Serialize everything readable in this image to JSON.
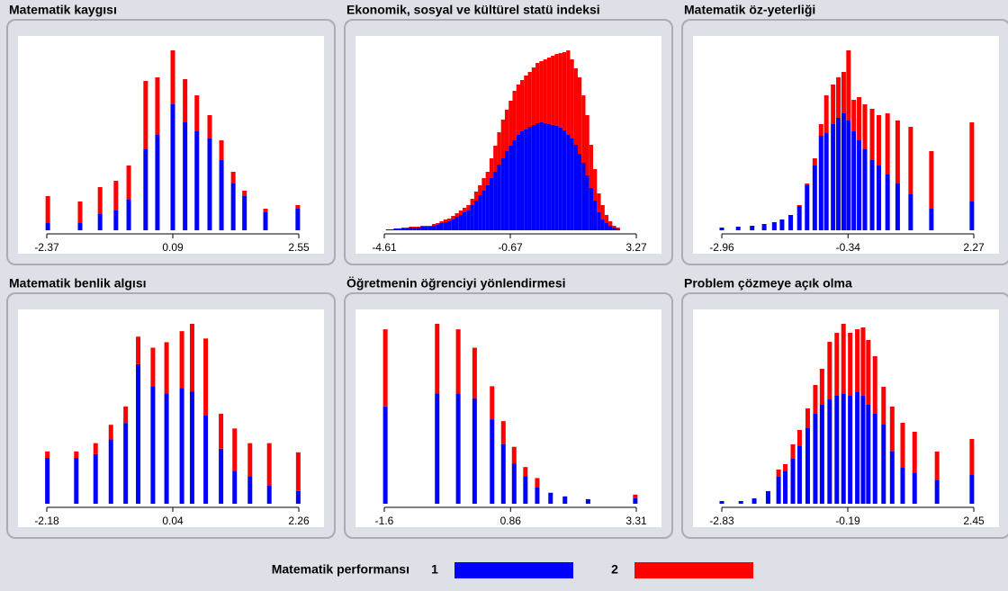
{
  "legend_title": "Matematik performansı",
  "chart_data": [
    {
      "type": "bar",
      "stacked": true,
      "title": "Matematik kaygısı",
      "x": [
        -2.35,
        -1.72,
        -1.33,
        -1.02,
        -0.77,
        -0.44,
        -0.21,
        0.09,
        0.33,
        0.56,
        0.81,
        1.04,
        1.27,
        1.49,
        1.9,
        2.53
      ],
      "series": [
        {
          "name": "1",
          "color": "#0000ff",
          "values": [
            8,
            8,
            18,
            22,
            34,
            90,
            106,
            140,
            120,
            110,
            102,
            78,
            52,
            38,
            20,
            24
          ]
        },
        {
          "name": "2",
          "color": "#ff0000",
          "values": [
            30,
            24,
            30,
            33,
            38,
            76,
            64,
            60,
            48,
            40,
            26,
            22,
            13,
            6,
            4,
            4
          ]
        }
      ],
      "xlim": [
        -2.37,
        2.55
      ],
      "xticks": [
        -2.37,
        0.09,
        2.55
      ]
    },
    {
      "type": "bar",
      "stacked": true,
      "title": "Ekonomik, sosyal ve kültürel statü indeksi",
      "x": [
        -4.5,
        -4.38,
        -4.26,
        -4.14,
        -4.02,
        -3.9,
        -3.78,
        -3.66,
        -3.54,
        -3.42,
        -3.3,
        -3.18,
        -3.06,
        -2.94,
        -2.82,
        -2.7,
        -2.58,
        -2.46,
        -2.34,
        -2.22,
        -2.1,
        -1.98,
        -1.86,
        -1.74,
        -1.62,
        -1.5,
        -1.38,
        -1.26,
        -1.14,
        -1.02,
        -0.9,
        -0.78,
        -0.66,
        -0.54,
        -0.42,
        -0.3,
        -0.18,
        -0.06,
        0.06,
        0.18,
        0.3,
        0.42,
        0.54,
        0.66,
        0.78,
        0.9,
        1.02,
        1.14,
        1.26,
        1.38,
        1.5,
        1.62,
        1.74,
        1.86,
        1.98,
        2.1,
        2.22,
        2.34,
        2.46,
        2.58,
        2.7
      ],
      "series": [
        {
          "name": "1",
          "color": "#0000ff",
          "values": [
            1,
            1,
            2,
            2,
            2,
            2,
            3,
            3,
            3,
            4,
            4,
            4,
            5,
            6,
            8,
            9,
            10,
            12,
            15,
            17,
            20,
            22,
            28,
            33,
            39,
            44,
            50,
            58,
            65,
            73,
            80,
            88,
            94,
            100,
            106,
            110,
            112,
            115,
            117,
            119,
            120,
            119,
            118,
            117,
            116,
            114,
            111,
            106,
            102,
            95,
            85,
            75,
            61,
            47,
            33,
            20,
            12,
            8,
            5,
            3,
            1
          ]
        },
        {
          "name": "2",
          "color": "#ff0000",
          "values": [
            0,
            0,
            0,
            0,
            1,
            1,
            1,
            1,
            1,
            1,
            1,
            1,
            2,
            2,
            2,
            3,
            3,
            4,
            4,
            5,
            5,
            6,
            7,
            10,
            11,
            14,
            15,
            22,
            29,
            36,
            43,
            46,
            50,
            55,
            56,
            57,
            60,
            61,
            64,
            67,
            68,
            71,
            74,
            77,
            80,
            83,
            87,
            94,
            88,
            85,
            85,
            75,
            67,
            48,
            35,
            21,
            16,
            9,
            5,
            2,
            2
          ]
        }
      ],
      "xlim": [
        -4.61,
        3.27
      ],
      "xticks": [
        -4.61,
        -0.67,
        3.27
      ]
    },
    {
      "type": "bar",
      "stacked": true,
      "title": "Matematik öz-yeterliği",
      "x": [
        -2.96,
        -2.62,
        -2.33,
        -2.08,
        -1.87,
        -1.71,
        -1.53,
        -1.35,
        -1.19,
        -1.03,
        -0.9,
        -0.79,
        -0.65,
        -0.54,
        -0.43,
        -0.33,
        -0.22,
        -0.11,
        0.01,
        0.16,
        0.3,
        0.48,
        0.69,
        0.96,
        1.39,
        2.23
      ],
      "series": [
        {
          "name": "1",
          "color": "#0000ff",
          "values": [
            3,
            4,
            5,
            7,
            9,
            12,
            17,
            27,
            50,
            72,
            105,
            108,
            118,
            125,
            130,
            122,
            110,
            100,
            90,
            78,
            72,
            62,
            52,
            40,
            24,
            32
          ]
        },
        {
          "name": "2",
          "color": "#ff0000",
          "values": [
            0,
            0,
            0,
            0,
            0,
            0,
            0,
            1,
            2,
            8,
            13,
            42,
            44,
            45,
            46,
            78,
            35,
            48,
            50,
            57,
            56,
            68,
            70,
            75,
            64,
            88
          ]
        }
      ],
      "xlim": [
        -2.96,
        2.27
      ],
      "xticks": [
        -2.96,
        -0.34,
        2.27
      ]
    },
    {
      "type": "bar",
      "stacked": true,
      "title": "Matematik benlik algısı",
      "x": [
        -2.17,
        -1.66,
        -1.32,
        -1.05,
        -0.79,
        -0.57,
        -0.31,
        -0.07,
        0.2,
        0.38,
        0.62,
        0.89,
        1.13,
        1.4,
        1.74,
        2.25
      ],
      "series": [
        {
          "name": "1",
          "color": "#0000ff",
          "values": [
            50,
            50,
            54,
            70,
            88,
            152,
            128,
            120,
            126,
            122,
            96,
            60,
            36,
            30,
            20,
            14
          ]
        },
        {
          "name": "2",
          "color": "#ff0000",
          "values": [
            7,
            7,
            12,
            16,
            18,
            30,
            42,
            56,
            62,
            74,
            84,
            38,
            46,
            36,
            46,
            42
          ]
        }
      ],
      "xlim": [
        -2.18,
        2.26
      ],
      "xticks": [
        -2.18,
        0.04,
        2.26
      ]
    },
    {
      "type": "bar",
      "stacked": true,
      "title": "Öğretmenin öğrenciyi yönlendirmesi",
      "x": [
        -1.58,
        -0.57,
        -0.16,
        0.16,
        0.5,
        0.72,
        0.93,
        1.15,
        1.38,
        1.64,
        1.92,
        2.37,
        3.29
      ],
      "series": [
        {
          "name": "1",
          "color": "#0000ff",
          "values": [
            106,
            120,
            120,
            115,
            92,
            65,
            44,
            30,
            18,
            12,
            8,
            5,
            6
          ]
        },
        {
          "name": "2",
          "color": "#ff0000",
          "values": [
            84,
            76,
            70,
            55,
            36,
            25,
            18,
            10,
            10,
            0,
            0,
            0,
            4
          ]
        }
      ],
      "xlim": [
        -1.6,
        3.31
      ],
      "xticks": [
        -1.6,
        0.86,
        3.31
      ]
    },
    {
      "type": "bar",
      "stacked": true,
      "title": "Problem çözmeye açık olma",
      "x": [
        -2.83,
        -2.43,
        -2.15,
        -1.86,
        -1.64,
        -1.5,
        -1.34,
        -1.2,
        -1.03,
        -0.87,
        -0.73,
        -0.57,
        -0.42,
        -0.28,
        -0.14,
        0.01,
        0.13,
        0.24,
        0.38,
        0.56,
        0.74,
        0.96,
        1.21,
        1.68,
        2.41
      ],
      "series": [
        {
          "name": "1",
          "color": "#0000ff",
          "values": [
            3,
            3,
            6,
            14,
            30,
            36,
            50,
            64,
            84,
            100,
            110,
            116,
            120,
            122,
            120,
            124,
            120,
            110,
            100,
            88,
            58,
            40,
            34,
            26,
            32
          ]
        },
        {
          "name": "2",
          "color": "#ff0000",
          "values": [
            0,
            0,
            0,
            0,
            8,
            8,
            16,
            18,
            22,
            32,
            40,
            64,
            70,
            78,
            70,
            70,
            76,
            72,
            64,
            42,
            50,
            50,
            46,
            32,
            40
          ]
        }
      ],
      "xlim": [
        -2.83,
        2.45
      ],
      "xticks": [
        -2.83,
        -0.19,
        2.45
      ]
    }
  ]
}
